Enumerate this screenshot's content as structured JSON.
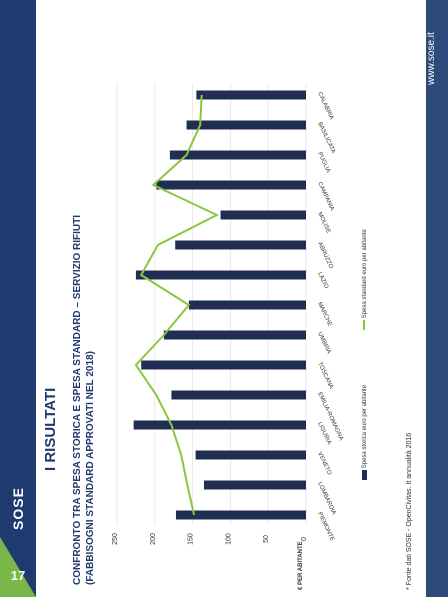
{
  "slide": {
    "section_title": "I RISULTATI",
    "page_number": "17",
    "logo_text": "SOSE",
    "website": "www.sose.it",
    "source_note": "* Fonte dati SOSE - OpenCivitas. It annualità 2016"
  },
  "chart_title_line1": "CONFRONTO TRA SPESA STORICA E SPESA STANDARD – SERVIZIO RIFIUTI",
  "chart_title_line2": "(FABBISOGNI STANDARD APPROVATI NEL 2018)",
  "colors": {
    "navy": "#1f2e52",
    "green": "#8cc63f",
    "slide_blue": "#1f3a6e"
  },
  "chart_data": {
    "type": "bar",
    "title": "CONFRONTO TRA SPESA STORICA E SPESA STANDARD – SERVIZIO RIFIUTI (FABBISOGNI STANDARD APPROVATI NEL 2018)",
    "ylabel": "€ PER ABITANTE",
    "ylim": [
      0,
      250
    ],
    "yticks": [
      0,
      50,
      100,
      150,
      200,
      250
    ],
    "categories": [
      "PIEMONTE",
      "LOMBARDIA",
      "VENETO",
      "LIGURIA",
      "EMILIA-ROMAGNA",
      "TOSCANA",
      "UMBRIA",
      "MARCHE",
      "LAZIO",
      "ABRUZZO",
      "MOLISE",
      "CAMPANIA",
      "PUGLIA",
      "BASILICATA",
      "CALABRIA"
    ],
    "series": [
      {
        "name": "Spesa storica euro per abitante",
        "type": "bar",
        "color": "#1f2e52",
        "values": [
          172,
          135,
          146,
          228,
          178,
          218,
          188,
          155,
          225,
          173,
          113,
          198,
          180,
          158,
          145
        ]
      },
      {
        "name": "Spesa standard euro per abitante",
        "type": "line",
        "color": "#8cc63f",
        "values": [
          148,
          157,
          165,
          178,
          198,
          225,
          188,
          155,
          218,
          196,
          118,
          202,
          158,
          140,
          138
        ]
      }
    ],
    "legend_position": "bottom",
    "grid": true
  }
}
